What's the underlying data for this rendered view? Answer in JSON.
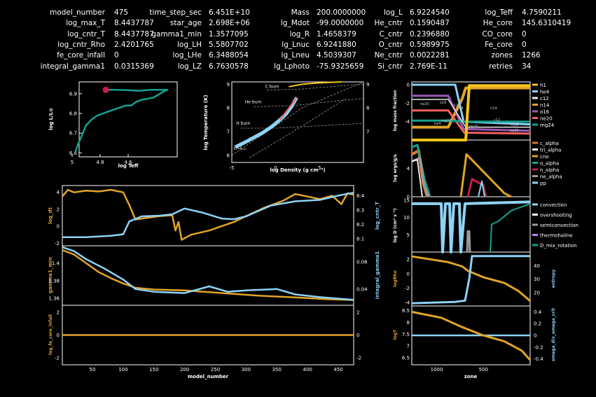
{
  "header": {
    "columns": [
      [
        [
          "model_number",
          "475"
        ],
        [
          "log_max_T",
          "8.4437787"
        ],
        [
          "log_cntr_T",
          "8.4437787"
        ],
        [
          "log_cntr_Rho",
          "2.4201765"
        ],
        [
          "fe_core_infall",
          "0"
        ],
        [
          "integral_gamma1",
          "0.0315369"
        ]
      ],
      [
        [
          "time_step_sec",
          "6.451E+10"
        ],
        [
          "star_age",
          "2.698E+06"
        ],
        [
          "gamma1_min",
          "1.3577095"
        ],
        [
          "log_LH",
          "5.5807702"
        ],
        [
          "log_LHe",
          "6.3488054"
        ],
        [
          "log_LZ",
          "6.7630578"
        ]
      ],
      [
        [
          "Mass",
          "200.0000000"
        ],
        [
          "lg_Mdot",
          "-99.0000000"
        ],
        [
          "log_R",
          "1.4658379"
        ],
        [
          "lg_Lnuc",
          "6.9241880"
        ],
        [
          "lg_Lneu",
          "4.5039307"
        ],
        [
          "lg_Lphoto",
          "-75.9325659"
        ]
      ],
      [
        [
          "log_L",
          "6.9224540"
        ],
        [
          "He_cntr",
          "0.1590487"
        ],
        [
          "C_cntr",
          "0.2396880"
        ],
        [
          "O_cntr",
          "0.5989975"
        ],
        [
          "Ne_cntr",
          "0.0022281"
        ],
        [
          "Si_cntr",
          "2.769E-11"
        ]
      ],
      [
        [
          "log_Teff",
          "4.7590211"
        ],
        [
          "He_core",
          "145.6310419"
        ],
        [
          "CO_core",
          "0"
        ],
        [
          "Fe_core",
          "0"
        ],
        [
          "zones",
          "1266"
        ],
        [
          "retries",
          "34"
        ]
      ]
    ]
  },
  "colors": {
    "hr": "#14a08e",
    "marker": "#c81e4a",
    "gold": "#e0a428",
    "blue": "#8ed2f5",
    "grey": "#9a9a9a",
    "white": "#ffffff"
  },
  "chart_data": [
    {
      "id": "hr",
      "type": "line",
      "xlabel": "log Teff",
      "ylabel": "log L/L⊙",
      "xlim": [
        4.95,
        4.25
      ],
      "ylim": [
        6.58,
        6.96
      ],
      "xticks": [
        5,
        4.8,
        4.6
      ],
      "yticks": [
        6.6,
        6.7,
        6.8,
        6.9
      ],
      "x": [
        4.98,
        4.96,
        4.93,
        4.9,
        4.86,
        4.82,
        4.78,
        4.74,
        4.7,
        4.66,
        4.62,
        4.58,
        4.56,
        4.54,
        4.5,
        4.42,
        4.35,
        4.32,
        4.36,
        4.44,
        4.52,
        4.6,
        4.7,
        4.76
      ],
      "y": [
        6.6,
        6.64,
        6.69,
        6.74,
        6.77,
        6.79,
        6.8,
        6.81,
        6.82,
        6.83,
        6.84,
        6.84,
        6.85,
        6.86,
        6.87,
        6.88,
        6.91,
        6.92,
        6.92,
        6.92,
        6.915,
        6.918,
        6.92,
        6.92
      ],
      "marker": [
        4.76,
        6.92
      ]
    },
    {
      "id": "trho",
      "type": "line",
      "xlabel": "log Density (g cm⁻³)",
      "ylabel": "log Temperature (K)",
      "xlim": [
        -5,
        10
      ],
      "ylim": [
        5.7,
        9.1
      ],
      "xticks": [
        -5,
        0,
        5
      ],
      "yticks": [
        6,
        7,
        8,
        9
      ],
      "y2ticks": [
        7,
        8,
        9
      ],
      "annotations": [
        "C burn",
        "He burn",
        "H burn",
        "Eᵥ=Eₓₐₛ"
      ],
      "x": [
        -4.6,
        -3.5,
        -2.5,
        -1.5,
        -0.5,
        0.5,
        1.2,
        1.8,
        2.4
      ],
      "y": [
        6.35,
        6.55,
        6.75,
        6.95,
        7.2,
        7.5,
        7.75,
        8.05,
        8.44
      ],
      "hot_x": [
        1.5,
        3,
        4.5,
        6,
        7.5
      ],
      "hot_y": [
        8.9,
        9.0,
        9.05,
        9.08,
        9.1
      ]
    },
    {
      "id": "abund",
      "type": "line",
      "ylabel": "log mass fraction",
      "ylim": [
        -6,
        0.3
      ],
      "legend": [
        "h1",
        "he4",
        "c12",
        "n14",
        "o16",
        "ne20",
        "mg24"
      ],
      "legend_colors": [
        "#f5c518",
        "#8ed2f5",
        "#e8e8e8",
        "#e0a428",
        "#9b59b6",
        "#f06060",
        "#14a08e"
      ],
      "inline_labels": [
        "ne20",
        "o16",
        "c12",
        "n14",
        "n14",
        "he4",
        "mg24",
        "c12",
        "ne20",
        "n14",
        "ne20"
      ]
    },
    {
      "id": "power",
      "type": "line",
      "ylabel": "log ergs/g/s",
      "ylim": [
        0,
        8
      ],
      "legend": [
        "c_alpha",
        "tri_alpha",
        "cno",
        "o_alpha",
        "n_alpha",
        "ne_alpha",
        "pp"
      ],
      "legend_colors": [
        "#e07a30",
        "#e8e8e8",
        "#e0a428",
        "#14a08e",
        "#c81e4a",
        "#9a9a9a",
        "#8ed2f5"
      ]
    },
    {
      "id": "mix",
      "type": "line",
      "ylabel": "log D (cm² s⁻¹)",
      "ylim": [
        0,
        16
      ],
      "legend": [
        "convection",
        "overshooting",
        "semiconvection",
        "thermohaline",
        "D_mix_rotation"
      ],
      "legend_colors": [
        "#8ed2f5",
        "#ffffff",
        "#9a9a9a",
        "#c080f0",
        "#14a08e"
      ]
    },
    {
      "id": "logR_entropy",
      "type": "line",
      "ylabel": "logRho",
      "y2label": "entropy",
      "ylim": [
        -4.5,
        3
      ],
      "yticks": [
        2,
        0,
        -2,
        -4
      ],
      "y2lim": [
        10,
        50
      ],
      "y2ticks": [
        40,
        30,
        20
      ]
    },
    {
      "id": "logT_omega",
      "type": "line",
      "ylabel": "logT",
      "y2label": "omega_div_omega_crit",
      "ylim": [
        6.2,
        8.7
      ],
      "yticks": [
        8.5,
        8,
        7.5,
        7,
        6.5
      ],
      "y2lim": [
        -0.5,
        0.5
      ],
      "y2ticks": [
        0.4,
        0.2,
        0,
        -0.2,
        -0.4
      ],
      "xlabel": "zone",
      "xlim": [
        1266,
        0
      ],
      "xticks": [
        1000,
        500
      ]
    },
    {
      "id": "hist_lgdt",
      "type": "line",
      "ylabel": "log_dt",
      "y2label": "log_cntr_T",
      "ylim": [
        -2.3,
        4.8
      ],
      "yticks": [
        4,
        2,
        0,
        -2
      ],
      "y2lim": [
        8.05,
        8.47
      ],
      "y2ticks": [
        8.4,
        8.3,
        8.2,
        8.1
      ]
    },
    {
      "id": "hist_gamma",
      "type": "line",
      "ylabel": "gamma1_min",
      "y2label": "integral_gamma1",
      "ylim": [
        1.352,
        1.42
      ],
      "yticks": [
        1.4,
        1.38,
        1.36
      ],
      "y2lim": [
        0.028,
        0.072
      ],
      "y2ticks": [
        0.06,
        0.04
      ]
    },
    {
      "id": "hist_fe",
      "type": "line",
      "ylabel": "log_fe_core_infall",
      "y2label": "",
      "ylim": [
        -2.6,
        2.6
      ],
      "yticks": [
        2,
        0,
        -2
      ],
      "y2ticks": [
        2,
        0,
        -2
      ],
      "xlabel": "model_number",
      "xlim": [
        1,
        475
      ],
      "xticks": [
        50,
        100,
        150,
        200,
        250,
        300,
        350,
        400,
        450
      ]
    }
  ]
}
